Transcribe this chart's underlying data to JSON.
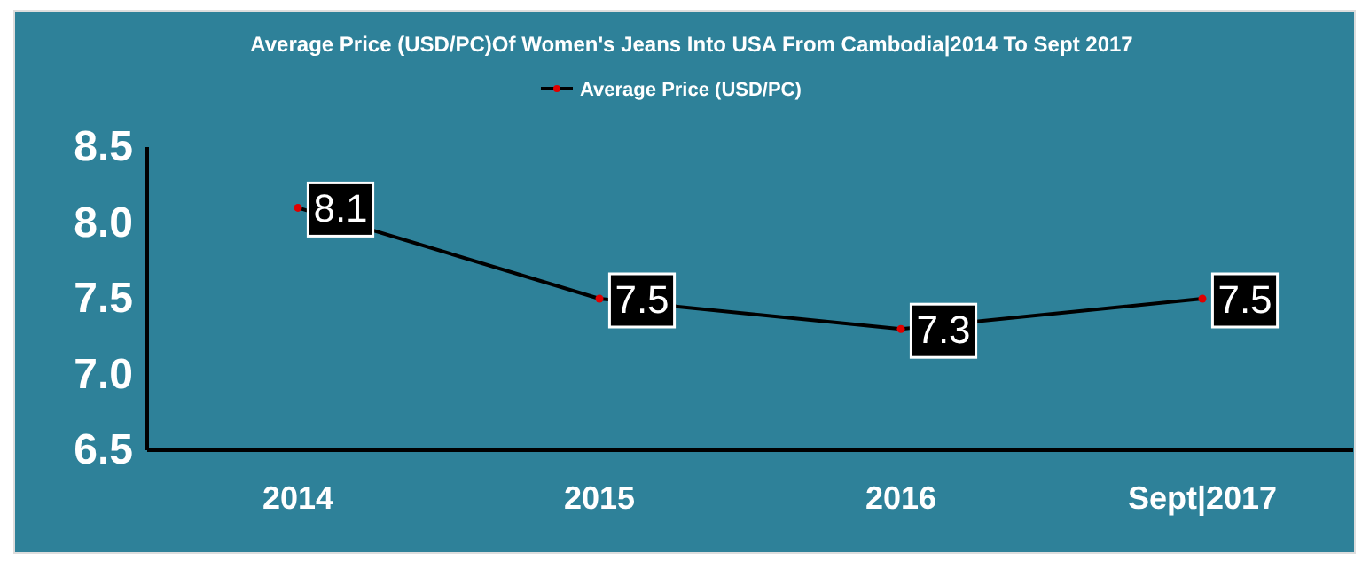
{
  "chart_data": {
    "type": "line",
    "title": "Average Price (USD/PC)Of Women's Jeans Into USA From Cambodia|2014 To Sept 2017",
    "categories": [
      "2014",
      "2015",
      "2016",
      "Sept|2017"
    ],
    "series": [
      {
        "name": "Average Price (USD/PC)",
        "color": "#000000",
        "values": [
          8.1,
          7.5,
          7.3,
          7.5
        ]
      }
    ],
    "ylim": [
      6.5,
      8.5
    ],
    "yticks": [
      {
        "value": 6.5,
        "label": "6.5"
      },
      {
        "value": 7.0,
        "label": "7.0"
      },
      {
        "value": 7.5,
        "label": "7.5"
      },
      {
        "value": 8.0,
        "label": "8.0"
      },
      {
        "value": 8.5,
        "label": "8.5"
      }
    ],
    "data_labels": true,
    "legend": "top",
    "grid": false,
    "marker": "circle",
    "line_style": "solid"
  }
}
